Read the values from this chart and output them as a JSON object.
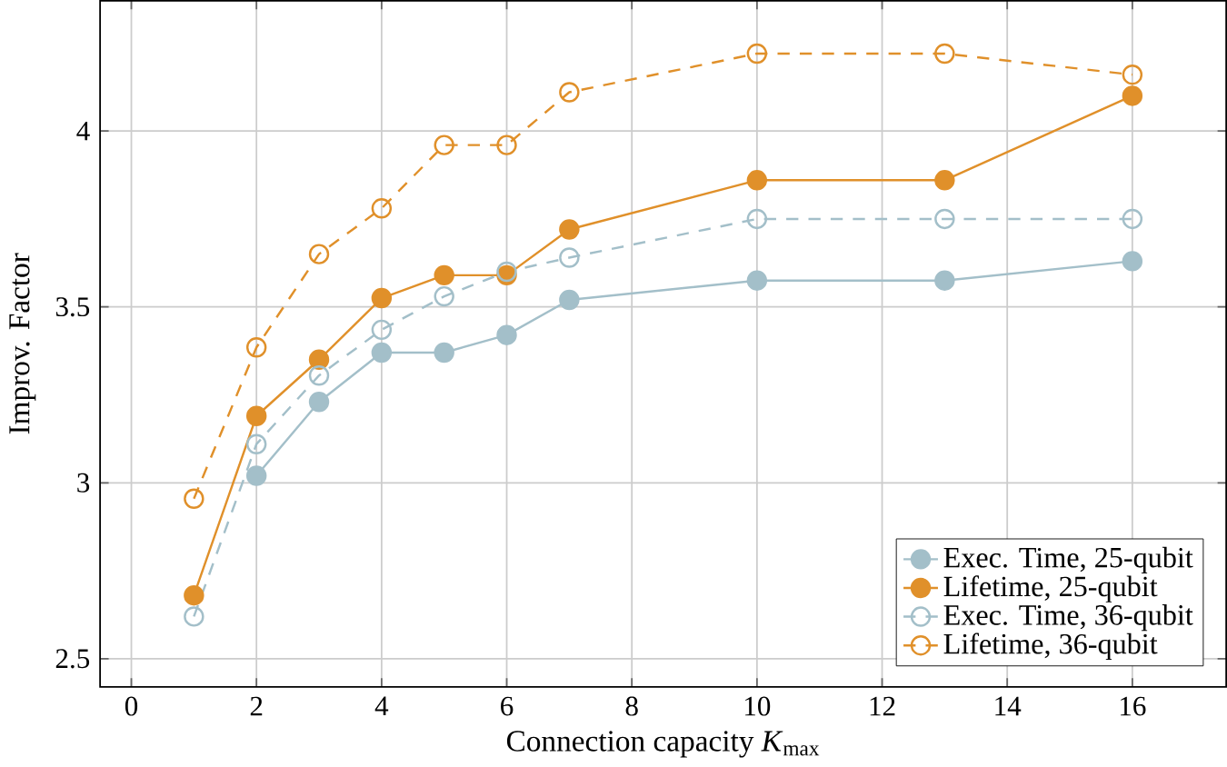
{
  "chart_data": {
    "type": "line",
    "xlabel": "Connection capacity *K*$_{max}$",
    "ylabel": "Improv. Factor",
    "x": [
      1,
      2,
      3,
      4,
      5,
      6,
      7,
      10,
      13,
      16
    ],
    "series": [
      {
        "name": "Exec. Time, 25-qubit",
        "color": "#a3bfc9",
        "line_style": "solid",
        "values": [
          null,
          3.02,
          3.23,
          3.37,
          3.37,
          3.42,
          3.52,
          3.575,
          3.575,
          3.63
        ]
      },
      {
        "name": "Lifetime, 25-qubit",
        "color": "#e0902a",
        "line_style": "solid",
        "values": [
          2.68,
          3.19,
          3.35,
          3.525,
          3.59,
          3.59,
          3.72,
          3.86,
          3.86,
          4.1
        ]
      },
      {
        "name": "Exec. Time, 36-qubit",
        "color": "#a3bfc9",
        "line_style": "dashed",
        "values": [
          2.62,
          3.11,
          3.305,
          3.435,
          3.53,
          3.6,
          3.64,
          3.75,
          3.75,
          3.75
        ]
      },
      {
        "name": "Lifetime, 36-qubit",
        "color": "#e0902a",
        "line_style": "dashed",
        "values": [
          2.955,
          3.385,
          3.65,
          3.78,
          3.96,
          3.96,
          4.11,
          4.22,
          4.22,
          4.16
        ]
      }
    ],
    "marker": "circle",
    "xlim": [
      -0.5,
      17.5
    ],
    "ylim": [
      2.42,
      4.37
    ],
    "xticks": [
      0,
      2,
      4,
      6,
      8,
      10,
      12,
      14,
      16
    ],
    "yticks": [
      2.5,
      3,
      3.5,
      4
    ],
    "grid": true,
    "legend": "bottom right"
  }
}
